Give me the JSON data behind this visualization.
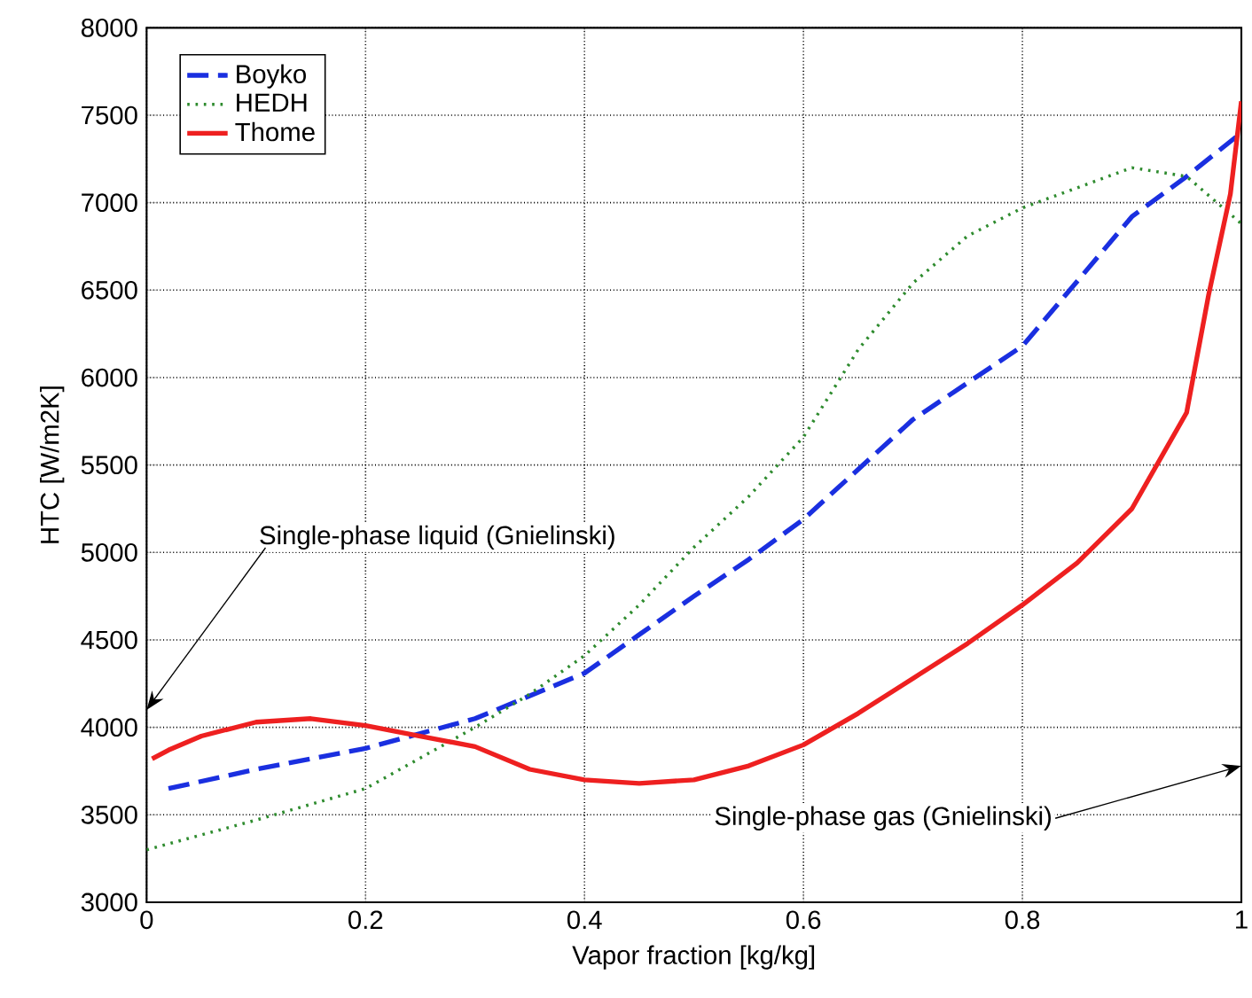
{
  "chart_data": {
    "type": "line",
    "xlabel": "Vapor fraction [kg/kg]",
    "ylabel": "HTC [W/m2K]",
    "xlim": [
      0,
      1
    ],
    "ylim": [
      3000,
      8000
    ],
    "xticks": [
      0,
      0.2,
      0.4,
      0.6,
      0.8,
      1
    ],
    "yticks": [
      3000,
      3500,
      4000,
      4500,
      5000,
      5500,
      6000,
      6500,
      7000,
      7500,
      8000
    ],
    "grid": true,
    "legend": "top left",
    "marker": "none",
    "series": [
      {
        "name": "Boyko",
        "color": "#1a2fe0",
        "line_style": "dashed",
        "x": [
          0.02,
          0.1,
          0.2,
          0.3,
          0.4,
          0.45,
          0.5,
          0.55,
          0.6,
          0.7,
          0.8,
          0.9,
          0.95,
          1.0
        ],
        "values": [
          3650,
          3760,
          3880,
          4050,
          4310,
          4530,
          4750,
          4960,
          5190,
          5760,
          6180,
          6920,
          7150,
          7400
        ]
      },
      {
        "name": "HEDH",
        "color": "#2e8b2e",
        "line_style": "dotted",
        "x": [
          0.0,
          0.1,
          0.2,
          0.3,
          0.35,
          0.4,
          0.45,
          0.5,
          0.55,
          0.6,
          0.65,
          0.7,
          0.75,
          0.8,
          0.9,
          0.95,
          1.0
        ],
        "values": [
          3300,
          3470,
          3650,
          4000,
          4190,
          4410,
          4700,
          5030,
          5320,
          5660,
          6160,
          6540,
          6810,
          6970,
          7200,
          7150,
          6880
        ]
      },
      {
        "name": "Thome",
        "color": "#ee2020",
        "line_style": "solid",
        "x": [
          0.005,
          0.02,
          0.05,
          0.1,
          0.15,
          0.2,
          0.25,
          0.3,
          0.35,
          0.4,
          0.45,
          0.5,
          0.55,
          0.6,
          0.65,
          0.7,
          0.75,
          0.8,
          0.85,
          0.9,
          0.95,
          0.97,
          0.99,
          1.0
        ],
        "values": [
          3820,
          3870,
          3950,
          4030,
          4050,
          4010,
          3950,
          3890,
          3760,
          3700,
          3680,
          3700,
          3780,
          3900,
          4080,
          4280,
          4480,
          4700,
          4940,
          5250,
          5800,
          6470,
          7050,
          7580
        ]
      }
    ],
    "annotations": [
      "Single-phase liquid (Gnielinski)",
      "Single-phase gas (Gnielinski)"
    ]
  }
}
